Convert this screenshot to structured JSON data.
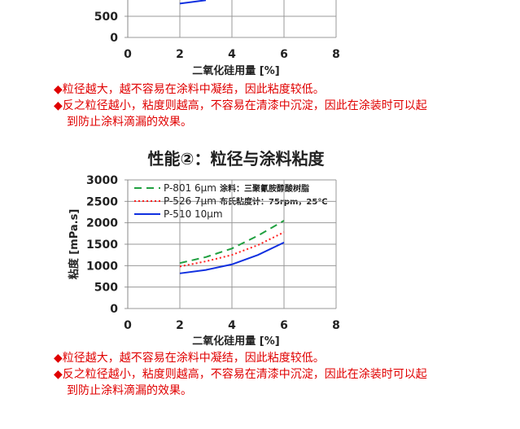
{
  "chart_data": [
    {
      "type": "line",
      "title": "",
      "xlabel": "二氧化硅用量 [%]",
      "ylabel": "",
      "xlim": [
        0,
        8
      ],
      "xticks": [
        "0",
        "2",
        "4",
        "6",
        "8"
      ],
      "yticks_visible": [
        "0",
        "500"
      ],
      "grid": true,
      "series": [
        {
          "color": "#1030e0",
          "style": "solid",
          "x": [
            2,
            3
          ],
          "y": [
            800,
            880
          ]
        }
      ]
    },
    {
      "type": "line",
      "title": "性能②：粒径与涂料粘度",
      "xlabel": "二氧化硅用量 [%]",
      "ylabel": "粘度 [mPa.s]",
      "xlim": [
        0,
        8
      ],
      "ylim": [
        0,
        3000
      ],
      "xticks": [
        "0",
        "2",
        "4",
        "6",
        "8"
      ],
      "yticks": [
        "0",
        "500",
        "1000",
        "1500",
        "2000",
        "2500",
        "3000"
      ],
      "grid": true,
      "legend_position": "top-left",
      "annotation": [
        "涂料：三聚氰胺醇酸树脂",
        "布氏粘度计：75rpm，25℃"
      ],
      "series": [
        {
          "name": "P-801 6μm",
          "color": "#20a040",
          "style": "dashed",
          "x": [
            2,
            3,
            4,
            5,
            6
          ],
          "y": [
            1060,
            1200,
            1400,
            1700,
            2050
          ]
        },
        {
          "name": "P-526 7μm",
          "color": "#ff2020",
          "style": "dotted",
          "x": [
            2,
            3,
            4,
            5,
            6
          ],
          "y": [
            980,
            1100,
            1250,
            1480,
            1780
          ]
        },
        {
          "name": "P-510 10μm",
          "color": "#1030e0",
          "style": "solid",
          "x": [
            2,
            3,
            4,
            5,
            6
          ],
          "y": [
            820,
            900,
            1030,
            1250,
            1540
          ]
        }
      ]
    }
  ],
  "text": {
    "bullet": "◆",
    "line1": "粒径越大，越不容易在涂料中凝结，因此粘度较低。",
    "line2": "反之粒径越小，粘度则越高，不容易在清漆中沉淀，因此在涂装时可以起到防止涂料滴漏的效果。"
  }
}
